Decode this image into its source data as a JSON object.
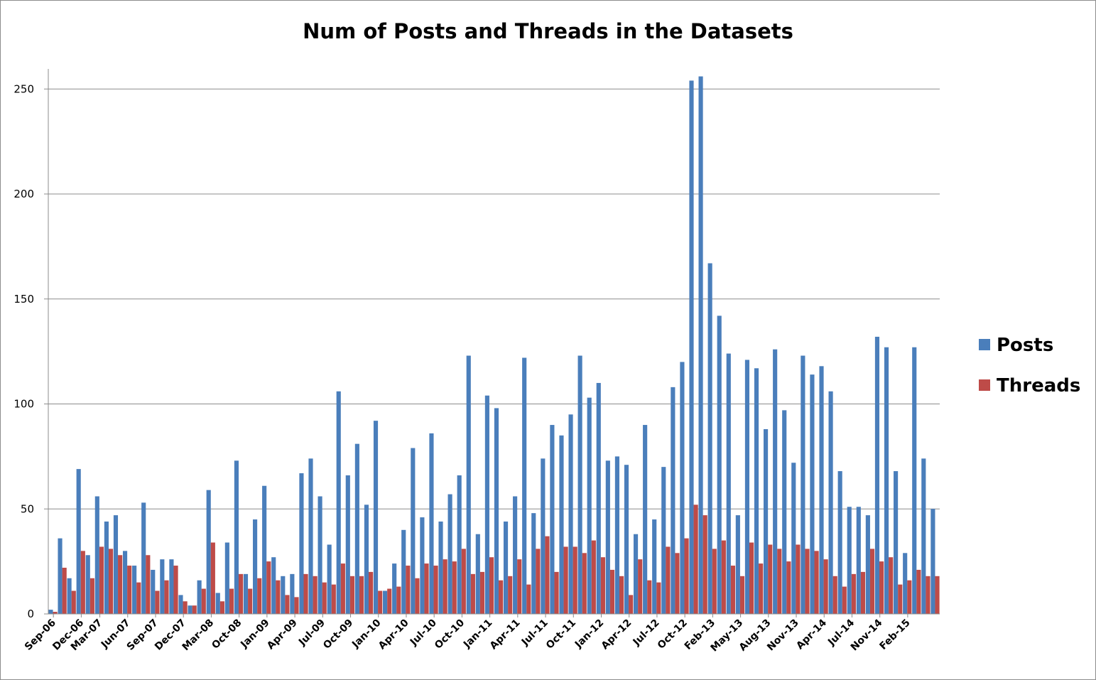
{
  "chart_data": {
    "type": "bar",
    "title": "Num of Posts and Threads in the Datasets",
    "xlabel": "",
    "ylabel": "",
    "ylim": [
      0,
      260
    ],
    "yticks": [
      0,
      50,
      100,
      150,
      200,
      250
    ],
    "grid": "horizontal",
    "legend_position": "right",
    "colors": {
      "Posts": "#4a7ebb",
      "Threads": "#be4b48"
    },
    "x_tick_labels": [
      {
        "index": 0,
        "label": "Sep-06"
      },
      {
        "index": 3,
        "label": "Dec-06"
      },
      {
        "index": 5,
        "label": "Mar-07"
      },
      {
        "index": 8,
        "label": "Jun-07"
      },
      {
        "index": 11,
        "label": "Sep-07"
      },
      {
        "index": 14,
        "label": "Dec-07"
      },
      {
        "index": 17,
        "label": "Mar-08"
      },
      {
        "index": 20,
        "label": "Oct-08"
      },
      {
        "index": 23,
        "label": "Jan-09"
      },
      {
        "index": 26,
        "label": "Apr-09"
      },
      {
        "index": 29,
        "label": "Jul-09"
      },
      {
        "index": 32,
        "label": "Oct-09"
      },
      {
        "index": 35,
        "label": "Jan-10"
      },
      {
        "index": 38,
        "label": "Apr-10"
      },
      {
        "index": 41,
        "label": "Jul-10"
      },
      {
        "index": 44,
        "label": "Oct-10"
      },
      {
        "index": 47,
        "label": "Jan-11"
      },
      {
        "index": 50,
        "label": "Apr-11"
      },
      {
        "index": 53,
        "label": "Jul-11"
      },
      {
        "index": 56,
        "label": "Oct-11"
      },
      {
        "index": 59,
        "label": "Jan-12"
      },
      {
        "index": 62,
        "label": "Apr-12"
      },
      {
        "index": 65,
        "label": "Jul-12"
      },
      {
        "index": 68,
        "label": "Oct-12"
      },
      {
        "index": 71,
        "label": "Feb-13"
      },
      {
        "index": 74,
        "label": "May-13"
      },
      {
        "index": 77,
        "label": "Aug-13"
      },
      {
        "index": 80,
        "label": "Nov-13"
      },
      {
        "index": 83,
        "label": "Apr-14"
      },
      {
        "index": 86,
        "label": "Jul-14"
      },
      {
        "index": 89,
        "label": "Nov-14"
      },
      {
        "index": 92,
        "label": "Feb-15"
      }
    ],
    "series": [
      {
        "name": "Posts",
        "values": [
          2,
          36,
          17,
          69,
          28,
          56,
          44,
          47,
          30,
          23,
          53,
          21,
          26,
          26,
          9,
          4,
          16,
          59,
          10,
          34,
          73,
          19,
          45,
          61,
          27,
          18,
          19,
          67,
          74,
          56,
          33,
          106,
          66,
          81,
          52,
          92,
          11,
          24,
          40,
          79,
          46,
          86,
          44,
          57,
          66,
          123,
          38,
          104,
          98,
          44,
          56,
          122,
          48,
          74,
          90,
          85,
          95,
          123,
          103,
          110,
          73,
          75,
          71,
          38,
          90,
          45,
          70,
          108,
          120,
          254,
          256,
          167,
          142,
          124,
          47,
          121,
          117,
          88,
          126,
          97,
          72,
          123,
          114,
          118,
          106,
          68,
          51,
          51,
          47,
          132,
          127,
          68,
          29,
          127,
          74,
          50
        ]
      },
      {
        "name": "Threads",
        "values": [
          1,
          22,
          11,
          30,
          17,
          32,
          31,
          28,
          23,
          15,
          28,
          11,
          16,
          23,
          6,
          4,
          12,
          34,
          6,
          12,
          19,
          12,
          17,
          25,
          16,
          9,
          8,
          19,
          18,
          15,
          14,
          24,
          18,
          18,
          20,
          11,
          12,
          13,
          23,
          17,
          24,
          23,
          26,
          25,
          31,
          19,
          20,
          27,
          16,
          18,
          26,
          14,
          31,
          37,
          20,
          32,
          32,
          29,
          35,
          27,
          21,
          18,
          9,
          26,
          16,
          15,
          32,
          29,
          36,
          52,
          47,
          31,
          35,
          23,
          18,
          34,
          24,
          33,
          31,
          25,
          33,
          31,
          30,
          26,
          18,
          13,
          19,
          20,
          31,
          25,
          27,
          14,
          16,
          21,
          18,
          18
        ]
      }
    ]
  }
}
